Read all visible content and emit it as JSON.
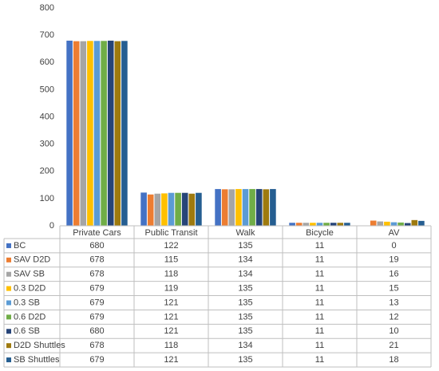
{
  "chart_data": {
    "type": "bar",
    "categories": [
      "Private Cars",
      "Public Transit",
      "Walk",
      "Bicycle",
      "AV"
    ],
    "series": [
      {
        "name": "BC",
        "color": "#4472c4",
        "values": [
          680,
          122,
          135,
          11,
          0
        ]
      },
      {
        "name": "SAV D2D",
        "color": "#ed7d31",
        "values": [
          678,
          115,
          134,
          11,
          19
        ]
      },
      {
        "name": "SAV SB",
        "color": "#a5a5a5",
        "values": [
          678,
          118,
          134,
          11,
          16
        ]
      },
      {
        "name": "0.3 D2D",
        "color": "#ffc000",
        "values": [
          679,
          119,
          135,
          11,
          15
        ]
      },
      {
        "name": "0.3 SB",
        "color": "#5b9bd5",
        "values": [
          679,
          121,
          135,
          11,
          13
        ]
      },
      {
        "name": "0.6 D2D",
        "color": "#70ad47",
        "values": [
          679,
          121,
          135,
          11,
          12
        ]
      },
      {
        "name": "0.6 SB",
        "color": "#264478",
        "values": [
          680,
          121,
          135,
          11,
          10
        ]
      },
      {
        "name": "D2D Shuttles",
        "color": "#9e7a0e",
        "values": [
          678,
          118,
          134,
          11,
          21
        ]
      },
      {
        "name": "SB Shuttles",
        "color": "#255e91",
        "values": [
          679,
          121,
          135,
          11,
          18
        ]
      }
    ],
    "ylim": [
      0,
      800
    ],
    "yticks": [
      0,
      100,
      200,
      300,
      400,
      500,
      600,
      700,
      800
    ],
    "grid": false
  }
}
